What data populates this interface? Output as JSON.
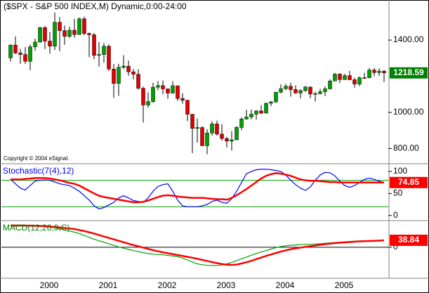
{
  "chart_data": [
    {
      "type": "candlestick",
      "title": "($SPX - S&P 500 INDEX,M) Dynamic,0:00-24:00",
      "note": "Copyright © 2004 eSignal.",
      "categories": [
        null,
        null,
        null,
        null,
        null,
        null,
        null,
        "2000",
        null,
        null,
        null,
        null,
        null,
        null,
        null,
        null,
        null,
        null,
        null,
        "2001",
        null,
        null,
        null,
        null,
        null,
        null,
        null,
        null,
        null,
        null,
        null,
        "2002",
        null,
        null,
        null,
        null,
        null,
        null,
        null,
        null,
        null,
        null,
        null,
        "2003",
        null,
        null,
        null,
        null,
        null,
        null,
        null,
        null,
        null,
        null,
        null,
        "2004",
        null,
        null,
        null,
        null,
        null,
        null,
        null,
        null,
        null,
        null,
        null,
        "2005",
        null,
        null,
        null,
        null,
        null,
        null,
        null,
        null,
        null
      ],
      "open": [
        1301.8,
        1372.7,
        1328.7,
        1320.4,
        1282.7,
        1362.9,
        1388.9,
        1469.3,
        1394.5,
        1366.4,
        1498.6,
        1452.4,
        1420.6,
        1454.6,
        1430.8,
        1517.7,
        1436.5,
        1429.4,
        1315.2,
        1320.3,
        1366.0,
        1239.9,
        1160.3,
        1249.5,
        1255.8,
        1224.4,
        1211.2,
        1133.6,
        1040.9,
        1059.8,
        1139.5,
        1148.1,
        1130.2,
        1106.7,
        1147.4,
        1076.9,
        1067.1,
        989.8,
        911.6,
        916.1,
        815.3,
        885.8,
        936.3,
        879.8,
        855.7,
        841.2,
        848.2,
        916.9,
        963.6,
        974.5,
        990.3,
        1008.0,
        996.0,
        1050.7,
        1058.2,
        1111.9,
        1131.1,
        1144.9,
        1126.2,
        1107.3,
        1120.7,
        1140.8,
        1101.7,
        1104.2,
        1114.6,
        1130.2,
        1173.8,
        1211.9,
        1181.3,
        1203.6,
        1180.6,
        1156.9,
        1191.5,
        1191.3,
        1234.2,
        1220.3,
        1228.8
      ],
      "high": [
        1375,
        1420,
        1352,
        1361,
        1375,
        1408,
        1473,
        1478,
        1445,
        1553,
        1528,
        1481,
        1474,
        1517,
        1525,
        1530,
        1442,
        1439,
        1390,
        1384,
        1376,
        1268,
        1269,
        1316,
        1287,
        1240,
        1239,
        1142,
        1111,
        1164,
        1173,
        1176,
        1131,
        1173,
        1148,
        1106,
        1071,
        990,
        966,
        924,
        907,
        951,
        954,
        935,
        865,
        896,
        924,
        972,
        1015,
        1016,
        1012,
        1040,
        1054,
        1063,
        1112,
        1155,
        1158,
        1164,
        1150,
        1128,
        1146,
        1141,
        1114,
        1131,
        1143,
        1183,
        1218,
        1217,
        1213,
        1229,
        1192,
        1199,
        1219,
        1245,
        1245,
        1244,
        1233
      ],
      "low": [
        1281,
        1323,
        1268,
        1268,
        1233,
        1341,
        1387,
        1350,
        1325,
        1346,
        1339,
        1374,
        1412,
        1413,
        1430,
        1426,
        1306,
        1294,
        1254,
        1275,
        1229,
        1081,
        1091,
        1240,
        1203,
        1183,
        1126,
        944,
        1027,
        1054,
        1124,
        1101,
        1075,
        1104,
        1064,
        1048,
        952,
        775,
        833,
        815,
        768,
        872,
        872,
        844,
        806,
        789,
        847,
        902,
        960,
        962,
        960,
        991,
        996,
        1035,
        1053,
        1106,
        1124,
        1087,
        1103,
        1077,
        1113,
        1078,
        1060,
        1098,
        1090,
        1127,
        1173,
        1163,
        1180,
        1178,
        1137,
        1146,
        1188,
        1191,
        1201,
        1201,
        1168
      ],
      "close": [
        1372.7,
        1328.7,
        1320.4,
        1282.7,
        1362.9,
        1388.9,
        1469.3,
        1394.5,
        1366.4,
        1498.6,
        1452.4,
        1420.6,
        1454.6,
        1430.8,
        1517.7,
        1436.5,
        1429.4,
        1315.2,
        1320.3,
        1366.0,
        1239.9,
        1160.3,
        1249.5,
        1255.8,
        1224.4,
        1211.2,
        1133.6,
        1040.9,
        1059.8,
        1139.5,
        1148.1,
        1130.2,
        1106.7,
        1147.4,
        1076.9,
        1067.1,
        989.8,
        911.6,
        916.1,
        815.3,
        885.8,
        936.3,
        879.8,
        855.7,
        841.2,
        848.2,
        916.9,
        963.6,
        974.5,
        990.3,
        1008.0,
        996.0,
        1050.7,
        1058.2,
        1111.9,
        1131.1,
        1144.9,
        1126.2,
        1107.3,
        1120.7,
        1140.8,
        1101.7,
        1104.2,
        1114.6,
        1130.2,
        1173.8,
        1211.9,
        1181.3,
        1203.6,
        1180.6,
        1156.9,
        1191.5,
        1191.3,
        1234.2,
        1220.3,
        1228.8,
        1218.59
      ],
      "up_color": "#00a000",
      "down_color": "#e00000",
      "tag_color": "#008000",
      "ylim": [
        720,
        1614
      ],
      "yticks": [
        {
          "value": 800,
          "label": "800.00"
        },
        {
          "value": 1000,
          "label": "1000.00"
        },
        {
          "value": 1400,
          "label": "1400.00"
        }
      ]
    },
    {
      "type": "line",
      "title": "Stochastic(7(4),12)",
      "title_color": "#0000ff",
      "series": [
        {
          "color": "#0000ff",
          "values": [
            82,
            72,
            62,
            58,
            68,
            78,
            80,
            81,
            80,
            76,
            72,
            70,
            68,
            62,
            55,
            45,
            35,
            22,
            15,
            18,
            24,
            30,
            40,
            45,
            40,
            34,
            32,
            30,
            40,
            55,
            66,
            70,
            72,
            55,
            35,
            22,
            20,
            20,
            20,
            22,
            25,
            32,
            35,
            30,
            28,
            38,
            55,
            75,
            95,
            100,
            104,
            105,
            105,
            104,
            102,
            100,
            92,
            80,
            70,
            62,
            57,
            65,
            80,
            92,
            98,
            97,
            90,
            78,
            68,
            64,
            68,
            75,
            82,
            85,
            82,
            78,
            75
          ]
        },
        {
          "color": "#ff0000",
          "tag": true,
          "values": [
            82,
            82,
            82,
            83,
            84,
            85,
            85,
            85,
            84,
            82,
            80,
            77,
            74,
            72,
            68,
            62,
            56,
            50,
            45,
            42,
            40,
            38,
            36,
            34,
            32,
            30,
            30,
            31,
            34,
            38,
            42,
            45,
            46,
            45,
            43,
            42,
            41,
            40,
            40,
            40,
            39,
            38,
            37,
            37,
            36,
            40,
            46,
            53,
            60,
            68,
            76,
            84,
            90,
            94,
            96,
            95,
            93,
            90,
            86,
            82,
            80,
            79,
            79,
            78,
            77,
            76,
            76,
            75,
            75,
            75,
            75,
            75,
            75,
            75,
            75,
            75,
            74.85
          ]
        }
      ],
      "levels": [
        80,
        20
      ],
      "level_color": "#00a000",
      "ylim": [
        -10,
        116
      ],
      "yticks": [
        0,
        50,
        100
      ]
    },
    {
      "type": "line",
      "title": "MACD(12,26,9,C)",
      "title_color": "#008000",
      "series": [
        {
          "color": "#00a000",
          "values": [
            117,
            117,
            118,
            118,
            118,
            117,
            116,
            115,
            112,
            108,
            102,
            96,
            90,
            84,
            76,
            66,
            55,
            45,
            36,
            28,
            20,
            10,
            2,
            -5,
            -12,
            -18,
            -24,
            -30,
            -35,
            -38,
            -40,
            -42,
            -45,
            -48,
            -52,
            -60,
            -70,
            -82,
            -92,
            -97,
            -100,
            -101,
            -101,
            -98,
            -92,
            -84,
            -74,
            -64,
            -54,
            -44,
            -35,
            -26,
            -18,
            -10,
            -2,
            4,
            8,
            11,
            13,
            15,
            16,
            17,
            18,
            20,
            22,
            24,
            26,
            28,
            30,
            32,
            34,
            35,
            36,
            37,
            38,
            38,
            39
          ]
        },
        {
          "color": "#ff0000",
          "tag": true,
          "values": [
            121,
            121,
            121,
            120,
            120,
            119,
            118,
            117,
            115,
            113,
            110,
            107,
            104,
            101,
            96,
            90,
            83,
            76,
            68,
            60,
            52,
            44,
            36,
            28,
            20,
            12,
            5,
            -2,
            -9,
            -16,
            -22,
            -28,
            -33,
            -38,
            -43,
            -48,
            -53,
            -58,
            -64,
            -70,
            -76,
            -82,
            -88,
            -93,
            -97,
            -98,
            -96,
            -90,
            -83,
            -75,
            -66,
            -57,
            -48,
            -40,
            -32,
            -24,
            -17,
            -11,
            -6,
            -2,
            2,
            6,
            10,
            14,
            17,
            20,
            23,
            25,
            27,
            29,
            31,
            33,
            34,
            35,
            36,
            37,
            38.84
          ]
        }
      ],
      "levels": [
        0
      ],
      "level_color": "#000000",
      "ylim": [
        -168,
        144
      ],
      "yticks": [
        0
      ]
    }
  ]
}
